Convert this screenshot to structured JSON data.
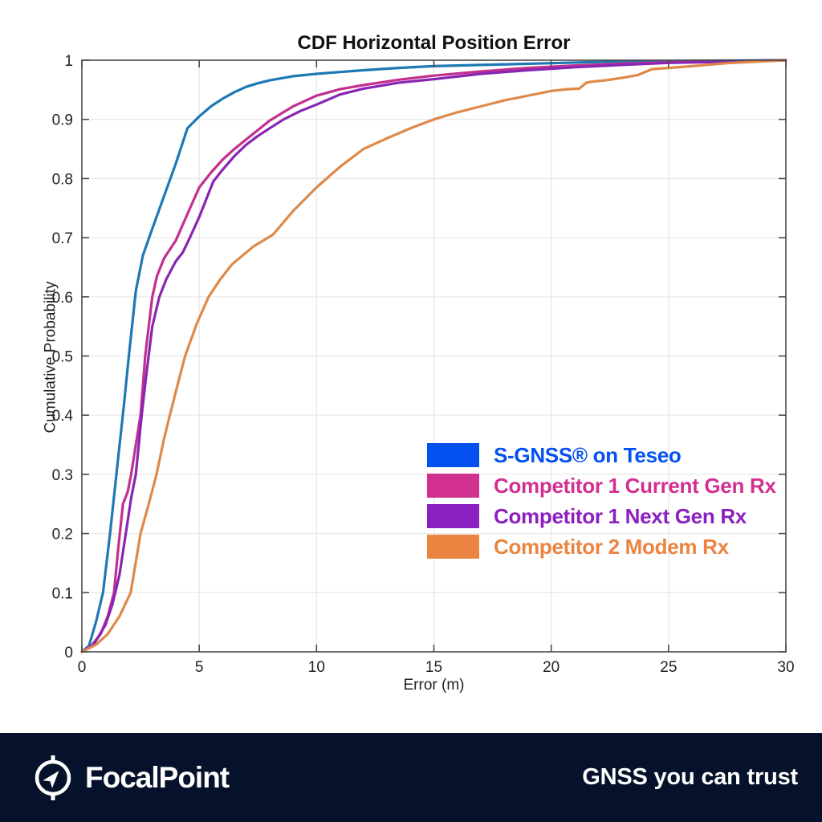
{
  "chart_data": {
    "type": "line",
    "title": "CDF Horizontal Position Error",
    "xlabel": "Error (m)",
    "ylabel": "Cumulative Probability",
    "xlim": [
      0,
      30
    ],
    "ylim": [
      0,
      1
    ],
    "xticks": [
      0,
      5,
      10,
      15,
      20,
      25,
      30
    ],
    "yticks": [
      0,
      0.1,
      0.2,
      0.3,
      0.4,
      0.5,
      0.6,
      0.7,
      0.8,
      0.9,
      1
    ],
    "grid": true,
    "grid_color": "#e7e7e7",
    "axis_color": "#4a4a4a",
    "legend_position": "inside-lower-right",
    "series": [
      {
        "name": "S-GNSS® on Teseo",
        "curve_color": "#1e78b4",
        "legend_color": "#0551f0",
        "x": [
          0,
          0.3,
          0.6,
          0.9,
          1.2,
          1.5,
          1.8,
          2.0,
          2.3,
          2.6,
          3.0,
          3.5,
          4.0,
          4.5,
          5.0,
          5.5,
          6.0,
          6.5,
          7.0,
          7.5,
          8.0,
          9.0,
          10,
          11,
          12,
          13.5,
          15,
          17,
          20,
          23,
          26,
          30
        ],
        "y": [
          0,
          0.01,
          0.05,
          0.1,
          0.2,
          0.31,
          0.42,
          0.5,
          0.61,
          0.67,
          0.715,
          0.77,
          0.825,
          0.885,
          0.905,
          0.922,
          0.935,
          0.946,
          0.955,
          0.961,
          0.966,
          0.973,
          0.977,
          0.98,
          0.983,
          0.987,
          0.99,
          0.992,
          0.995,
          0.998,
          0.999,
          1.0
        ]
      },
      {
        "name": "Competitor 1 Current Gen Rx",
        "curve_color": "#c2308f",
        "legend_color": "#d23090",
        "x": [
          0,
          0.4,
          0.8,
          1.1,
          1.37,
          1.55,
          1.75,
          1.95,
          2.1,
          2.3,
          2.5,
          2.7,
          2.85,
          3.0,
          3.2,
          3.5,
          4.0,
          4.5,
          5.0,
          5.5,
          6.0,
          6.5,
          7.0,
          7.5,
          8.0,
          9.0,
          10,
          11,
          12,
          13.5,
          15,
          17,
          19,
          21,
          23,
          25,
          27,
          30
        ],
        "y": [
          0,
          0.01,
          0.03,
          0.06,
          0.1,
          0.175,
          0.25,
          0.27,
          0.3,
          0.35,
          0.4,
          0.5,
          0.55,
          0.6,
          0.635,
          0.665,
          0.695,
          0.74,
          0.785,
          0.81,
          0.832,
          0.85,
          0.866,
          0.882,
          0.898,
          0.922,
          0.94,
          0.951,
          0.958,
          0.967,
          0.974,
          0.981,
          0.987,
          0.991,
          0.994,
          0.9965,
          0.998,
          1.0
        ]
      },
      {
        "name": "Competitor 1 Next Gen Rx",
        "curve_color": "#8826b4",
        "legend_color": "#8c1fc0",
        "x": [
          0,
          0.5,
          1.0,
          1.3,
          1.6,
          1.87,
          2.1,
          2.3,
          2.55,
          2.75,
          3.0,
          3.3,
          3.6,
          4.0,
          4.3,
          4.6,
          5.0,
          5.6,
          6.0,
          6.5,
          7.0,
          7.5,
          8.0,
          8.6,
          9.3,
          10,
          11,
          12,
          13.5,
          15,
          17,
          19,
          21,
          23,
          25,
          27,
          30
        ],
        "y": [
          0,
          0.012,
          0.045,
          0.08,
          0.13,
          0.2,
          0.26,
          0.3,
          0.4,
          0.47,
          0.55,
          0.6,
          0.63,
          0.66,
          0.675,
          0.7,
          0.735,
          0.795,
          0.815,
          0.838,
          0.857,
          0.872,
          0.885,
          0.9,
          0.914,
          0.925,
          0.942,
          0.952,
          0.962,
          0.968,
          0.977,
          0.983,
          0.988,
          0.992,
          0.9955,
          0.997,
          1.0
        ]
      },
      {
        "name": "Competitor 2 Modem Rx",
        "curve_color": "#de8948",
        "legend_color": "#eb8441",
        "x": [
          0,
          0.6,
          1.1,
          1.6,
          2.08,
          2.5,
          2.85,
          3.18,
          3.5,
          3.75,
          4.1,
          4.4,
          4.9,
          5.4,
          5.9,
          6.4,
          7.3,
          8.14,
          9,
          10,
          11,
          12,
          13,
          14,
          15,
          16,
          17,
          18,
          19,
          20,
          20.7,
          21.2,
          21.5,
          21.8,
          22.3,
          23,
          23.7,
          24.3,
          25,
          26,
          27.5,
          30
        ],
        "y": [
          0,
          0.012,
          0.03,
          0.06,
          0.1,
          0.2,
          0.25,
          0.3,
          0.36,
          0.4,
          0.455,
          0.5,
          0.555,
          0.6,
          0.63,
          0.655,
          0.685,
          0.705,
          0.745,
          0.785,
          0.82,
          0.85,
          0.868,
          0.885,
          0.9,
          0.912,
          0.922,
          0.932,
          0.94,
          0.948,
          0.951,
          0.952,
          0.962,
          0.964,
          0.966,
          0.97,
          0.975,
          0.985,
          0.987,
          0.99,
          0.995,
          1.0
        ]
      }
    ]
  },
  "footer": {
    "brand": "FocalPoint",
    "tagline": "GNSS you can trust",
    "background": "#06122b",
    "text_color": "#ffffff",
    "logo_icon": "compass-navigation-icon"
  }
}
